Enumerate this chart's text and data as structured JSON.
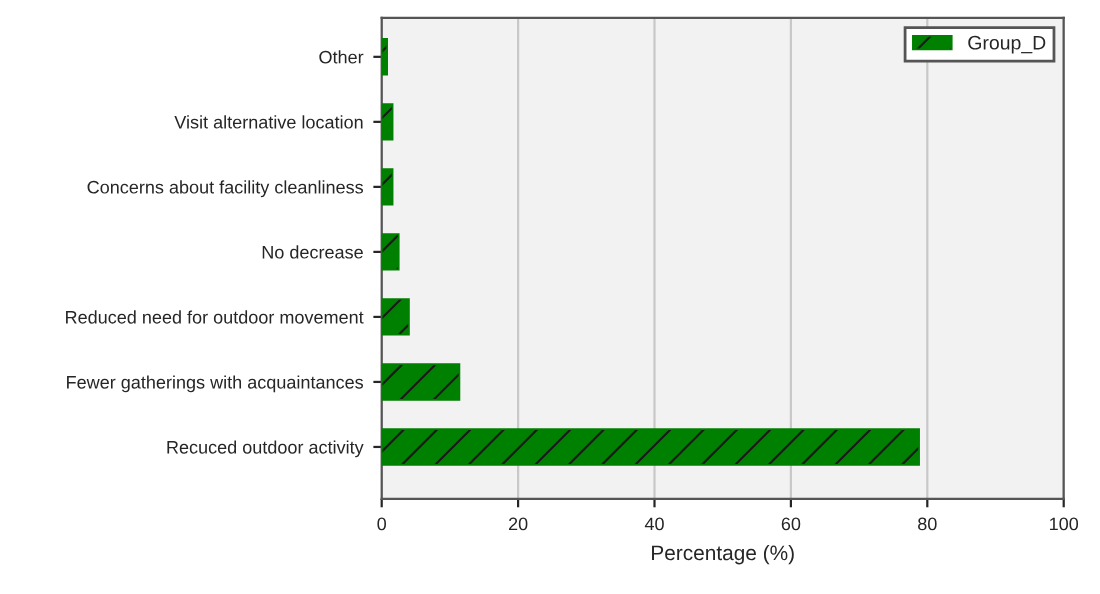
{
  "chart_data": {
    "type": "bar",
    "orientation": "horizontal",
    "xlabel": "Percentage (%)",
    "categories": [
      "Other",
      "Visit alternative location",
      "Concerns about facility cleanliness",
      "No decrease",
      "Reduced need for outdoor movement",
      "Fewer gatherings with acquaintances",
      "Recuced outdoor activity"
    ],
    "series": [
      {
        "name": "Group_D",
        "color": "#008000",
        "values": [
          0.8,
          1.6,
          1.6,
          2.5,
          4.0,
          11.4,
          78.8
        ]
      }
    ],
    "xlim": [
      0,
      100
    ],
    "xticks": [
      0,
      20,
      40,
      60,
      80,
      100
    ],
    "grid": "x",
    "legend": "top right"
  }
}
